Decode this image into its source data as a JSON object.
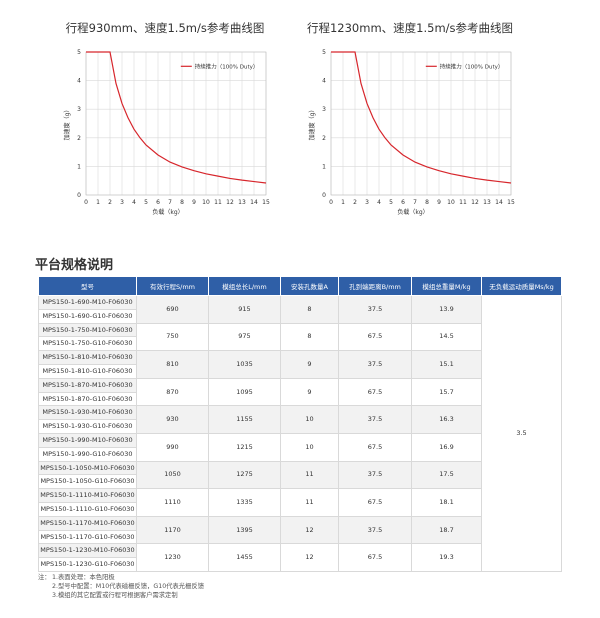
{
  "charts": [
    {
      "title": "行程930mm、速度1.5m/s参考曲线图"
    },
    {
      "title": "行程1230mm、速度1.5m/s参考曲线图"
    }
  ],
  "chart_data": [
    {
      "type": "line",
      "title": "行程930mm、速度1.5m/s参考曲线图",
      "xlabel": "负载（kg）",
      "ylabel": "加速度（g）",
      "xlim": [
        0,
        15
      ],
      "ylim": [
        0,
        5
      ],
      "xticks": [
        "0",
        "1",
        "2",
        "3",
        "4",
        "5",
        "6",
        "7",
        "8",
        "9",
        "10",
        "11",
        "12",
        "13",
        "14",
        "15"
      ],
      "yticks": [
        "0",
        "1",
        "2",
        "3",
        "4",
        "5"
      ],
      "grid": true,
      "legend_position": "top-right",
      "series": [
        {
          "name": "持续推力（100% Duty）",
          "color": "#d7262c",
          "x": [
            0,
            1,
            2,
            2.5,
            3,
            3.5,
            4,
            4.5,
            5,
            6,
            7,
            8,
            9,
            10,
            11,
            12,
            13,
            14,
            15
          ],
          "y": [
            5,
            5,
            5,
            3.9,
            3.2,
            2.7,
            2.3,
            2.0,
            1.75,
            1.4,
            1.15,
            0.98,
            0.85,
            0.74,
            0.66,
            0.58,
            0.52,
            0.47,
            0.42
          ]
        }
      ]
    },
    {
      "type": "line",
      "title": "行程1230mm、速度1.5m/s参考曲线图",
      "xlabel": "负载（kg）",
      "ylabel": "加速度（g）",
      "xlim": [
        0,
        15
      ],
      "ylim": [
        0,
        5
      ],
      "xticks": [
        "0",
        "1",
        "2",
        "3",
        "4",
        "5",
        "6",
        "7",
        "8",
        "9",
        "10",
        "11",
        "12",
        "13",
        "14",
        "15"
      ],
      "yticks": [
        "0",
        "1",
        "2",
        "3",
        "4",
        "5"
      ],
      "grid": true,
      "legend_position": "top-right",
      "series": [
        {
          "name": "持续推力（100% Duty）",
          "color": "#d7262c",
          "x": [
            0,
            1,
            2,
            2.5,
            3,
            3.5,
            4,
            4.5,
            5,
            6,
            7,
            8,
            9,
            10,
            11,
            12,
            13,
            14,
            15
          ],
          "y": [
            5,
            5,
            5,
            3.9,
            3.2,
            2.7,
            2.3,
            2.0,
            1.75,
            1.4,
            1.15,
            0.98,
            0.85,
            0.74,
            0.66,
            0.58,
            0.52,
            0.47,
            0.42
          ]
        }
      ]
    }
  ],
  "section_title": "平台规格说明",
  "table": {
    "headers": [
      "型号",
      "有效行程S/mm",
      "模组总长L/mm",
      "安装孔数量A",
      "孔到端距离B/mm",
      "模组总重量M/kg",
      "无负载运动质量Ms/kg"
    ],
    "groups": [
      {
        "models": [
          "MPS150-1-690-M10-F06030",
          "MPS150-1-690-G10-F06030"
        ],
        "stroke": "690",
        "length": "915",
        "holes": "8",
        "dist": "37.5",
        "weight": "13.9"
      },
      {
        "models": [
          "MPS150-1-750-M10-F06030",
          "MPS150-1-750-G10-F06030"
        ],
        "stroke": "750",
        "length": "975",
        "holes": "8",
        "dist": "67.5",
        "weight": "14.5"
      },
      {
        "models": [
          "MPS150-1-810-M10-F06030",
          "MPS150-1-810-G10-F06030"
        ],
        "stroke": "810",
        "length": "1035",
        "holes": "9",
        "dist": "37.5",
        "weight": "15.1"
      },
      {
        "models": [
          "MPS150-1-870-M10-F06030",
          "MPS150-1-870-G10-F06030"
        ],
        "stroke": "870",
        "length": "1095",
        "holes": "9",
        "dist": "67.5",
        "weight": "15.7"
      },
      {
        "models": [
          "MPS150-1-930-M10-F06030",
          "MPS150-1-930-G10-F06030"
        ],
        "stroke": "930",
        "length": "1155",
        "holes": "10",
        "dist": "37.5",
        "weight": "16.3"
      },
      {
        "models": [
          "MPS150-1-990-M10-F06030",
          "MPS150-1-990-G10-F06030"
        ],
        "stroke": "990",
        "length": "1215",
        "holes": "10",
        "dist": "67.5",
        "weight": "16.9"
      },
      {
        "models": [
          "MPS150-1-1050-M10-F06030",
          "MPS150-1-1050-G10-F06030"
        ],
        "stroke": "1050",
        "length": "1275",
        "holes": "11",
        "dist": "37.5",
        "weight": "17.5"
      },
      {
        "models": [
          "MPS150-1-1110-M10-F06030",
          "MPS150-1-1110-G10-F06030"
        ],
        "stroke": "1110",
        "length": "1335",
        "holes": "11",
        "dist": "67.5",
        "weight": "18.1"
      },
      {
        "models": [
          "MPS150-1-1170-M10-F06030",
          "MPS150-1-1170-G10-F06030"
        ],
        "stroke": "1170",
        "length": "1395",
        "holes": "12",
        "dist": "37.5",
        "weight": "18.7"
      },
      {
        "models": [
          "MPS150-1-1230-M10-F06030",
          "MPS150-1-1230-G10-F06030"
        ],
        "stroke": "1230",
        "length": "1455",
        "holes": "12",
        "dist": "67.5",
        "weight": "19.3"
      }
    ],
    "moving_mass": "3.5"
  },
  "notes": {
    "label": "注：",
    "items": [
      "1.表面处理：本色阳极",
      "2.型号中配置：M10代表磁栅反馈，G10代表光栅反馈",
      "3.模组的其它配置或行程可根据客户需求定制"
    ]
  }
}
